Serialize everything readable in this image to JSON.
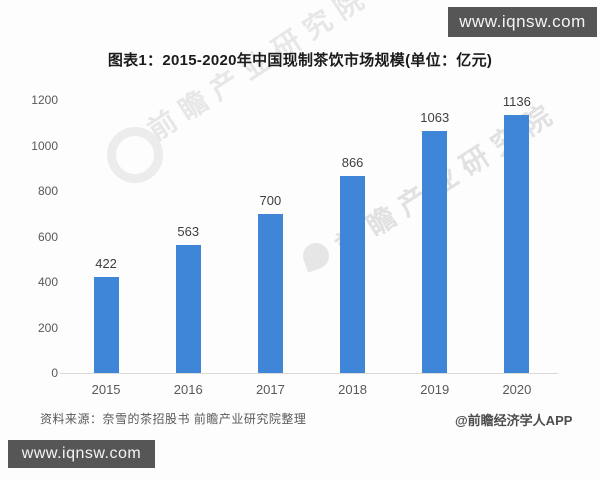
{
  "top_banner": {
    "url_text": "www.iqnsw.com"
  },
  "bottom_banner": {
    "url_text": "www.iqnsw.com"
  },
  "title": "图表1：2015-2020年中国现制茶饮市场规模(单位：亿元)",
  "chart_data": {
    "type": "bar",
    "title": "图表1：2015-2020年中国现制茶饮市场规模(单位：亿元)",
    "unit": "亿元",
    "categories": [
      "2015",
      "2016",
      "2017",
      "2018",
      "2019",
      "2020"
    ],
    "values": [
      422,
      563,
      700,
      866,
      1063,
      1136
    ],
    "ylim": [
      0,
      1200
    ],
    "yticks": [
      0,
      200,
      400,
      600,
      800,
      1000,
      1200
    ],
    "grid": false,
    "legend": "none",
    "bar_color": "#3f86d8",
    "data_labels": true
  },
  "watermark": {
    "text": "前瞻产业研究院"
  },
  "footer": {
    "source_text": "资料来源：奈雪的茶招股书 前瞻产业研究院整理",
    "credit_text": "@前瞻经济学人APP"
  },
  "colors": {
    "bar": "#3f86d8",
    "banner_bg": "#565656",
    "axis_text": "#595959",
    "title_text": "#1b1b1b"
  }
}
